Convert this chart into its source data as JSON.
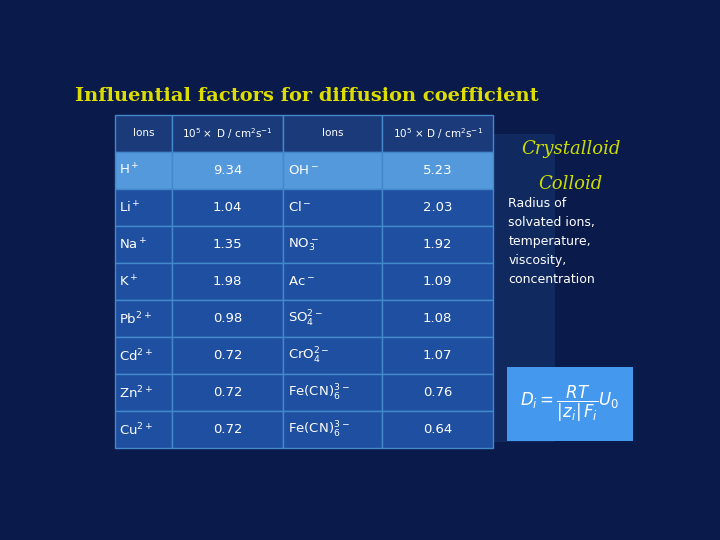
{
  "title": "Influential factors for diffusion coefficient",
  "title_color": "#DDDD00",
  "bg_color": "#0a1a4a",
  "table_bg_header": "#1a3a7a",
  "table_bg_highlight": "#5599dd",
  "table_bg_normal": "#1e4fa0",
  "table_border": "#4488cc",
  "text_color": "white",
  "header_text_color": "white",
  "rows_col1": [
    "H$^+$",
    "Li$^+$",
    "Na$^+$",
    "K$^+$",
    "Pb$^{2+}$",
    "Cd$^{2+}$",
    "Zn$^{2+}$",
    "Cu$^{2+}$"
  ],
  "rows_col2": [
    "9.34",
    "1.04",
    "1.35",
    "1.98",
    "0.98",
    "0.72",
    "0.72",
    "0.72"
  ],
  "rows_col3": [
    "OH$^-$",
    "Cl$^-$",
    "NO$_3^-$",
    "Ac$^-$",
    "SO$_4^{2-}$",
    "CrO$_4^{2-}$",
    "Fe(CN)$_6^{3-}$",
    "Fe(CN)$_6^{3-}$"
  ],
  "rows_col4": [
    "5.23",
    "2.03",
    "1.92",
    "1.09",
    "1.08",
    "1.07",
    "0.76",
    "0.64"
  ],
  "col_header1": "Ions",
  "col_header2": "10$^5\\times$ D / cm$^2$s$^{-1}$",
  "col_header3": "Ions",
  "col_header4": "10$^5$ $\\times$ D / cm$^2$s$^{-1}$",
  "right_label1": "Crystalloid",
  "right_label2": "Colloid",
  "right_label_color": "#ccdd00",
  "right_text": "Radius of\nsolvated ions,\ntemperature,\nviscosity,\nconcentration",
  "right_text_color": "white",
  "formula_bg": "#4499ee",
  "formula_text_color": "white",
  "mid_bg_color": "#1a4080"
}
